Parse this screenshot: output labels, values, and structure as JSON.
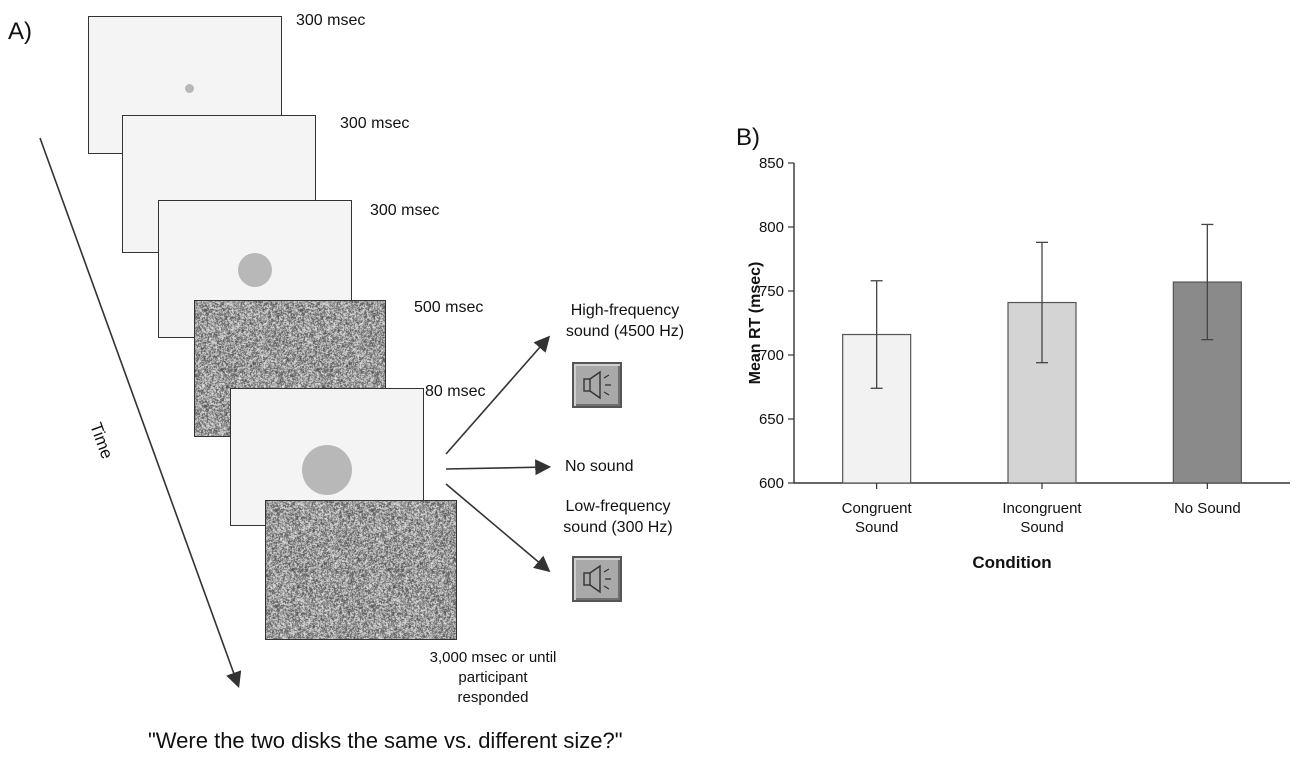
{
  "panel_a": {
    "label": "A)",
    "durations": [
      "300 msec",
      "300 msec",
      "300 msec",
      "500 msec",
      "80 msec"
    ],
    "final_duration": [
      "3,000 msec or until",
      "participant",
      "responded"
    ],
    "time_label": "Time",
    "outcomes": {
      "high": [
        "High-frequency",
        "sound (4500 Hz)"
      ],
      "none": "No sound",
      "low": [
        "Low-frequency",
        "sound (300 Hz)"
      ]
    },
    "question": "\"Were the two disks the same vs. different size?\"",
    "icons": [
      "speaker-icon",
      "speaker-icon"
    ]
  },
  "panel_b": {
    "label": "B)"
  },
  "chart_data": {
    "type": "bar",
    "categories": [
      [
        "Congruent",
        "Sound"
      ],
      [
        "Incongruent",
        "Sound"
      ],
      [
        "No Sound"
      ]
    ],
    "values": [
      716,
      741,
      757
    ],
    "errors": [
      42,
      47,
      45
    ],
    "ylabel": "Mean RT (msec)",
    "xlabel": "Condition",
    "ylim": [
      600,
      850
    ],
    "yticks": [
      600,
      650,
      700,
      750,
      800,
      850
    ],
    "colors": [
      "#f2f2f2",
      "#d4d4d4",
      "#8a8a8a"
    ],
    "grid": false
  }
}
